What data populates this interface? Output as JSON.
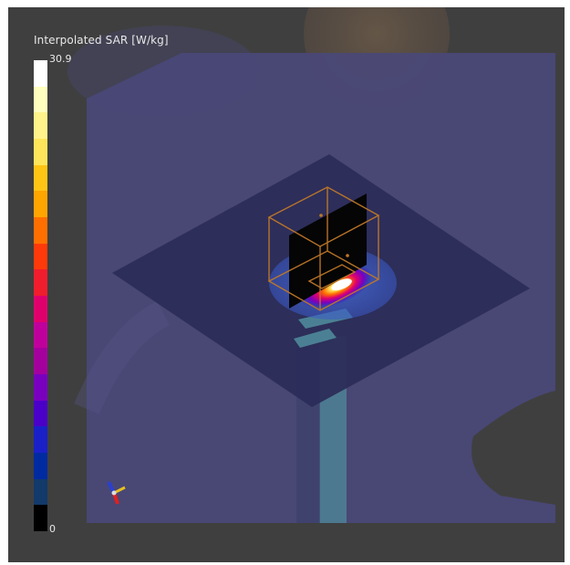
{
  "legend": {
    "title": "Interpolated SAR [W/kg]",
    "max_label": "30.9",
    "min_label": "0",
    "colors": [
      "#ffffff",
      "#ffffbe",
      "#fff38a",
      "#ffe55a",
      "#ffc515",
      "#ffa500",
      "#ff6f00",
      "#ff3a0a",
      "#f01e2c",
      "#e0006c",
      "#c0009c",
      "#a4009e",
      "#7a00c0",
      "#4a00c8",
      "#1a20c8",
      "#002aa0",
      "#123a6a",
      "#000000"
    ]
  },
  "scene": {
    "background": "#3f3f3f",
    "phantom_color": "#4a4878",
    "plate_color": "#2b2c58",
    "box_outline_color": "#c07828",
    "feed_color": "#4f8a9a"
  },
  "axes_widget": {
    "icon": "orientation-axes-icon"
  }
}
